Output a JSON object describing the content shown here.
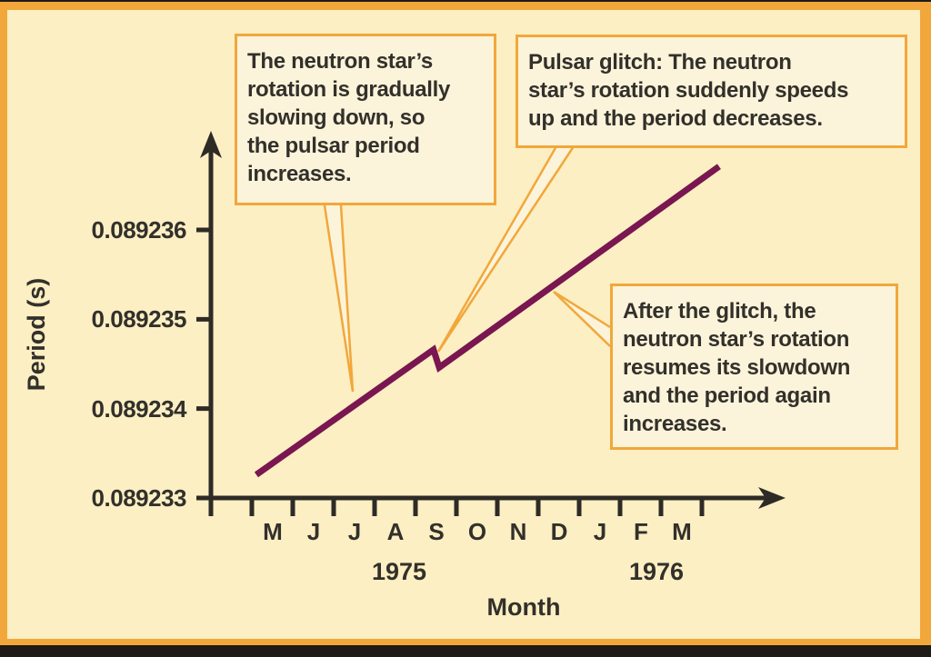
{
  "colors": {
    "frame-orange": "#F2A73B",
    "paper": "#FBEFC3",
    "boxfill": "#FCF4DA",
    "ink": "#33302B",
    "axis": "#2E2A26",
    "line": "#7A1650"
  },
  "chart_data": {
    "type": "line",
    "xlabel": "Month",
    "ylabel": "Period (s)",
    "ytick_labels": [
      "0.089236",
      "0.089235",
      "0.089234",
      "0.089233"
    ],
    "ytick_values": [
      0.089236,
      0.089235,
      0.089234,
      0.089233
    ],
    "ylim": [
      0.089233,
      0.0892372
    ],
    "xtick_labels": [
      "M",
      "J",
      "J",
      "A",
      "S",
      "O",
      "N",
      "D",
      "J",
      "F",
      "M"
    ],
    "xtick_months": [
      "May 1975",
      "Jun 1975",
      "Jul 1975",
      "Aug 1975",
      "Sep 1975",
      "Oct 1975",
      "Nov 1975",
      "Dec 1975",
      "Jan 1976",
      "Feb 1976",
      "Mar 1976"
    ],
    "year_labels": [
      "1975",
      "1976"
    ],
    "grid": false,
    "legend": "none",
    "series": [
      {
        "name": "pulsar period",
        "note": "month_index = months after the unlabeled April-1975 tick (1 unit per month)",
        "points": [
          {
            "month_index": 1.11,
            "month": "early May 1975",
            "period": 0.08923326
          },
          {
            "month_index": 5.44,
            "month": "mid Sep 1975 (glitch, pre)",
            "period": 0.08923466
          },
          {
            "month_index": 5.58,
            "month": "mid Sep 1975 (glitch, post)",
            "period": 0.08923446
          },
          {
            "month_index": 12.42,
            "month": "Apr 1976",
            "period": 0.08923671
          }
        ]
      }
    ],
    "glitch": {
      "when": "mid September 1975",
      "period_drop_s": 2e-07
    }
  },
  "callouts": {
    "slowdown": {
      "lines": [
        "The neutron star’s",
        "rotation is gradually",
        "slowing down, so",
        "the pulsar period",
        "increases."
      ]
    },
    "glitch": {
      "lines": [
        "Pulsar glitch: The neutron",
        "star’s rotation suddenly speeds",
        "up and the period decreases."
      ]
    },
    "after": {
      "lines": [
        "After the glitch, the",
        "neutron star’s rotation",
        "resumes its slowdown",
        "and the period again",
        "increases."
      ]
    }
  }
}
